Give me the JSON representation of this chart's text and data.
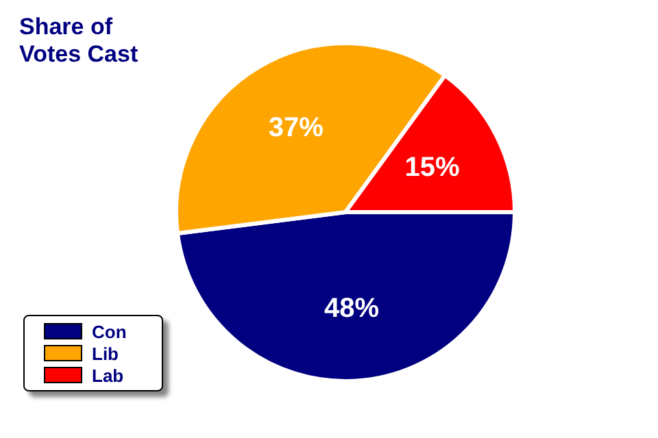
{
  "chart_data": {
    "type": "pie",
    "title": "Share of Votes Cast",
    "categories": [
      "Con",
      "Lib",
      "Lab"
    ],
    "values": [
      48,
      37,
      15
    ],
    "colors": [
      "#000080",
      "#ffa500",
      "#ff0000"
    ],
    "value_labels": [
      "48%",
      "37%",
      "15%"
    ],
    "legend": "bottom left"
  }
}
